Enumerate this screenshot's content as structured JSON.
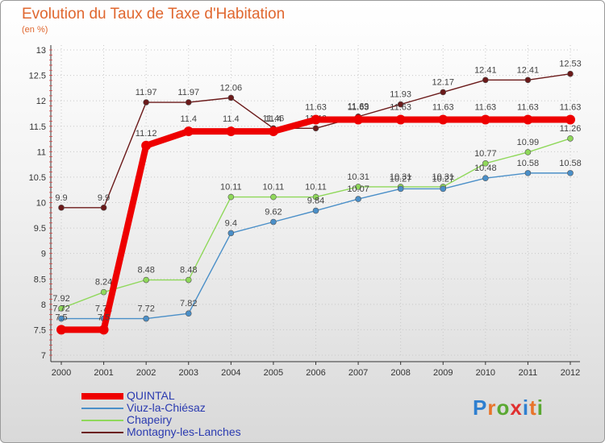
{
  "header": {
    "title": "Evolution du Taux de Taxe d'Habitation",
    "subtitle": "(en %)"
  },
  "brand": {
    "logo_text": "Proxiti"
  },
  "chart_data": {
    "type": "line",
    "x": [
      "2000",
      "2001",
      "2002",
      "2003",
      "2004",
      "2005",
      "2006",
      "2007",
      "2008",
      "2009",
      "2010",
      "2011",
      "2012"
    ],
    "ylim": [
      7,
      13
    ],
    "yticks": [
      "7",
      "7.5",
      "8",
      "8.5",
      "9",
      "9.5",
      "10",
      "10.5",
      "11",
      "11.5",
      "12",
      "12.5",
      "13"
    ],
    "grid": true,
    "legend_position": "bottom-left",
    "series": [
      {
        "name": "Montagny-les-Lanches",
        "color": "#6b1a1a",
        "values": [
          9.9,
          9.9,
          11.97,
          11.97,
          12.06,
          11.46,
          11.46,
          11.69,
          11.93,
          12.17,
          12.41,
          12.41,
          12.53
        ],
        "labels": [
          "9.9",
          "9.9",
          "11.97",
          "11.97",
          "12.06",
          "11.46",
          "11.46",
          "11.69",
          "11.93",
          "12.17",
          "12.41",
          "12.41",
          "12.53"
        ]
      },
      {
        "name": "Chapeiry",
        "color": "#8fd85a",
        "values": [
          7.92,
          8.24,
          8.48,
          8.48,
          10.11,
          10.11,
          10.11,
          10.31,
          10.31,
          10.31,
          10.77,
          10.99,
          11.26
        ],
        "labels": [
          "7.92",
          "8.24",
          "8.48",
          "8.48",
          "10.11",
          "10.11",
          "10.11",
          "10.31",
          "10.31",
          "10.31",
          "10.77",
          "10.99",
          "11.26"
        ]
      },
      {
        "name": "Viuz-la-Chiésaz",
        "color": "#4a8fc8",
        "values": [
          7.72,
          7.72,
          7.72,
          7.82,
          9.4,
          9.62,
          9.84,
          10.07,
          10.27,
          10.27,
          10.48,
          10.58,
          10.58
        ],
        "labels": [
          "7.72",
          "7.72",
          "7.72",
          "7.82",
          "9.4",
          "9.62",
          "9.84",
          "10.07",
          "10.27",
          "10.27",
          "10.48",
          "10.58",
          "10.58"
        ]
      },
      {
        "name": "QUINTAL",
        "color": "#ee0000",
        "values": [
          7.5,
          7.5,
          11.12,
          11.4,
          11.4,
          11.4,
          11.63,
          11.63,
          11.63,
          11.63,
          11.63,
          11.63,
          11.63
        ],
        "labels": [
          "7.5",
          "7.5",
          "11.12",
          "11.4",
          "11.4",
          "11.4",
          "11.63",
          "11.63",
          "11.63",
          "11.63",
          "11.63",
          "11.63",
          "11.63"
        ]
      }
    ],
    "legend_order": [
      "QUINTAL",
      "Viuz-la-Chiésaz",
      "Chapeiry",
      "Montagny-les-Lanches"
    ]
  }
}
